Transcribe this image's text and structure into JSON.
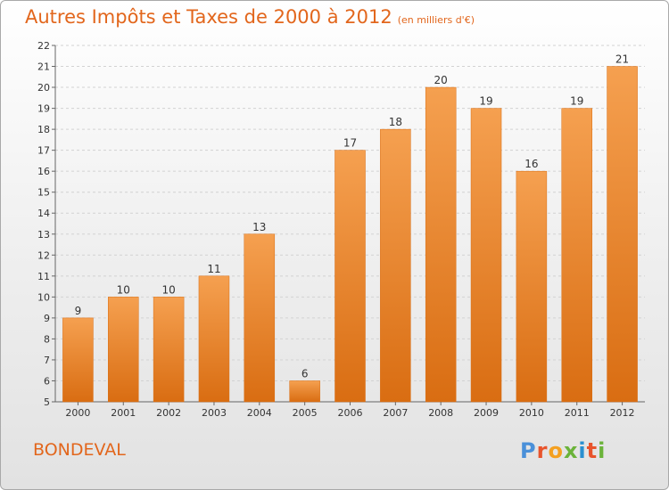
{
  "title": "Autres Impôts et Taxes de 2000 à 2012",
  "title_unit": "(en milliers d'€)",
  "location": "BONDEVAL",
  "logo": {
    "text": "Proxiti",
    "colors": [
      "#4a90d9",
      "#e8542c",
      "#f4a020",
      "#6bb33a",
      "#2a8fd0",
      "#e8542c",
      "#6bb33a"
    ]
  },
  "colors": {
    "accent": "#e2661c",
    "bar_top": "#f5a050",
    "bar_bottom": "#d96d12"
  },
  "chart_data": {
    "type": "bar",
    "categories": [
      "2000",
      "2001",
      "2002",
      "2003",
      "2004",
      "2005",
      "2006",
      "2007",
      "2008",
      "2009",
      "2010",
      "2011",
      "2012"
    ],
    "values": [
      9,
      10,
      10,
      11,
      13,
      6,
      17,
      18,
      20,
      19,
      16,
      19,
      21
    ],
    "ylim": [
      5,
      22
    ],
    "yticks": [
      5,
      6,
      7,
      8,
      9,
      10,
      11,
      12,
      13,
      14,
      15,
      16,
      17,
      18,
      19,
      20,
      21,
      22
    ],
    "grid": true,
    "data_labels": true
  }
}
